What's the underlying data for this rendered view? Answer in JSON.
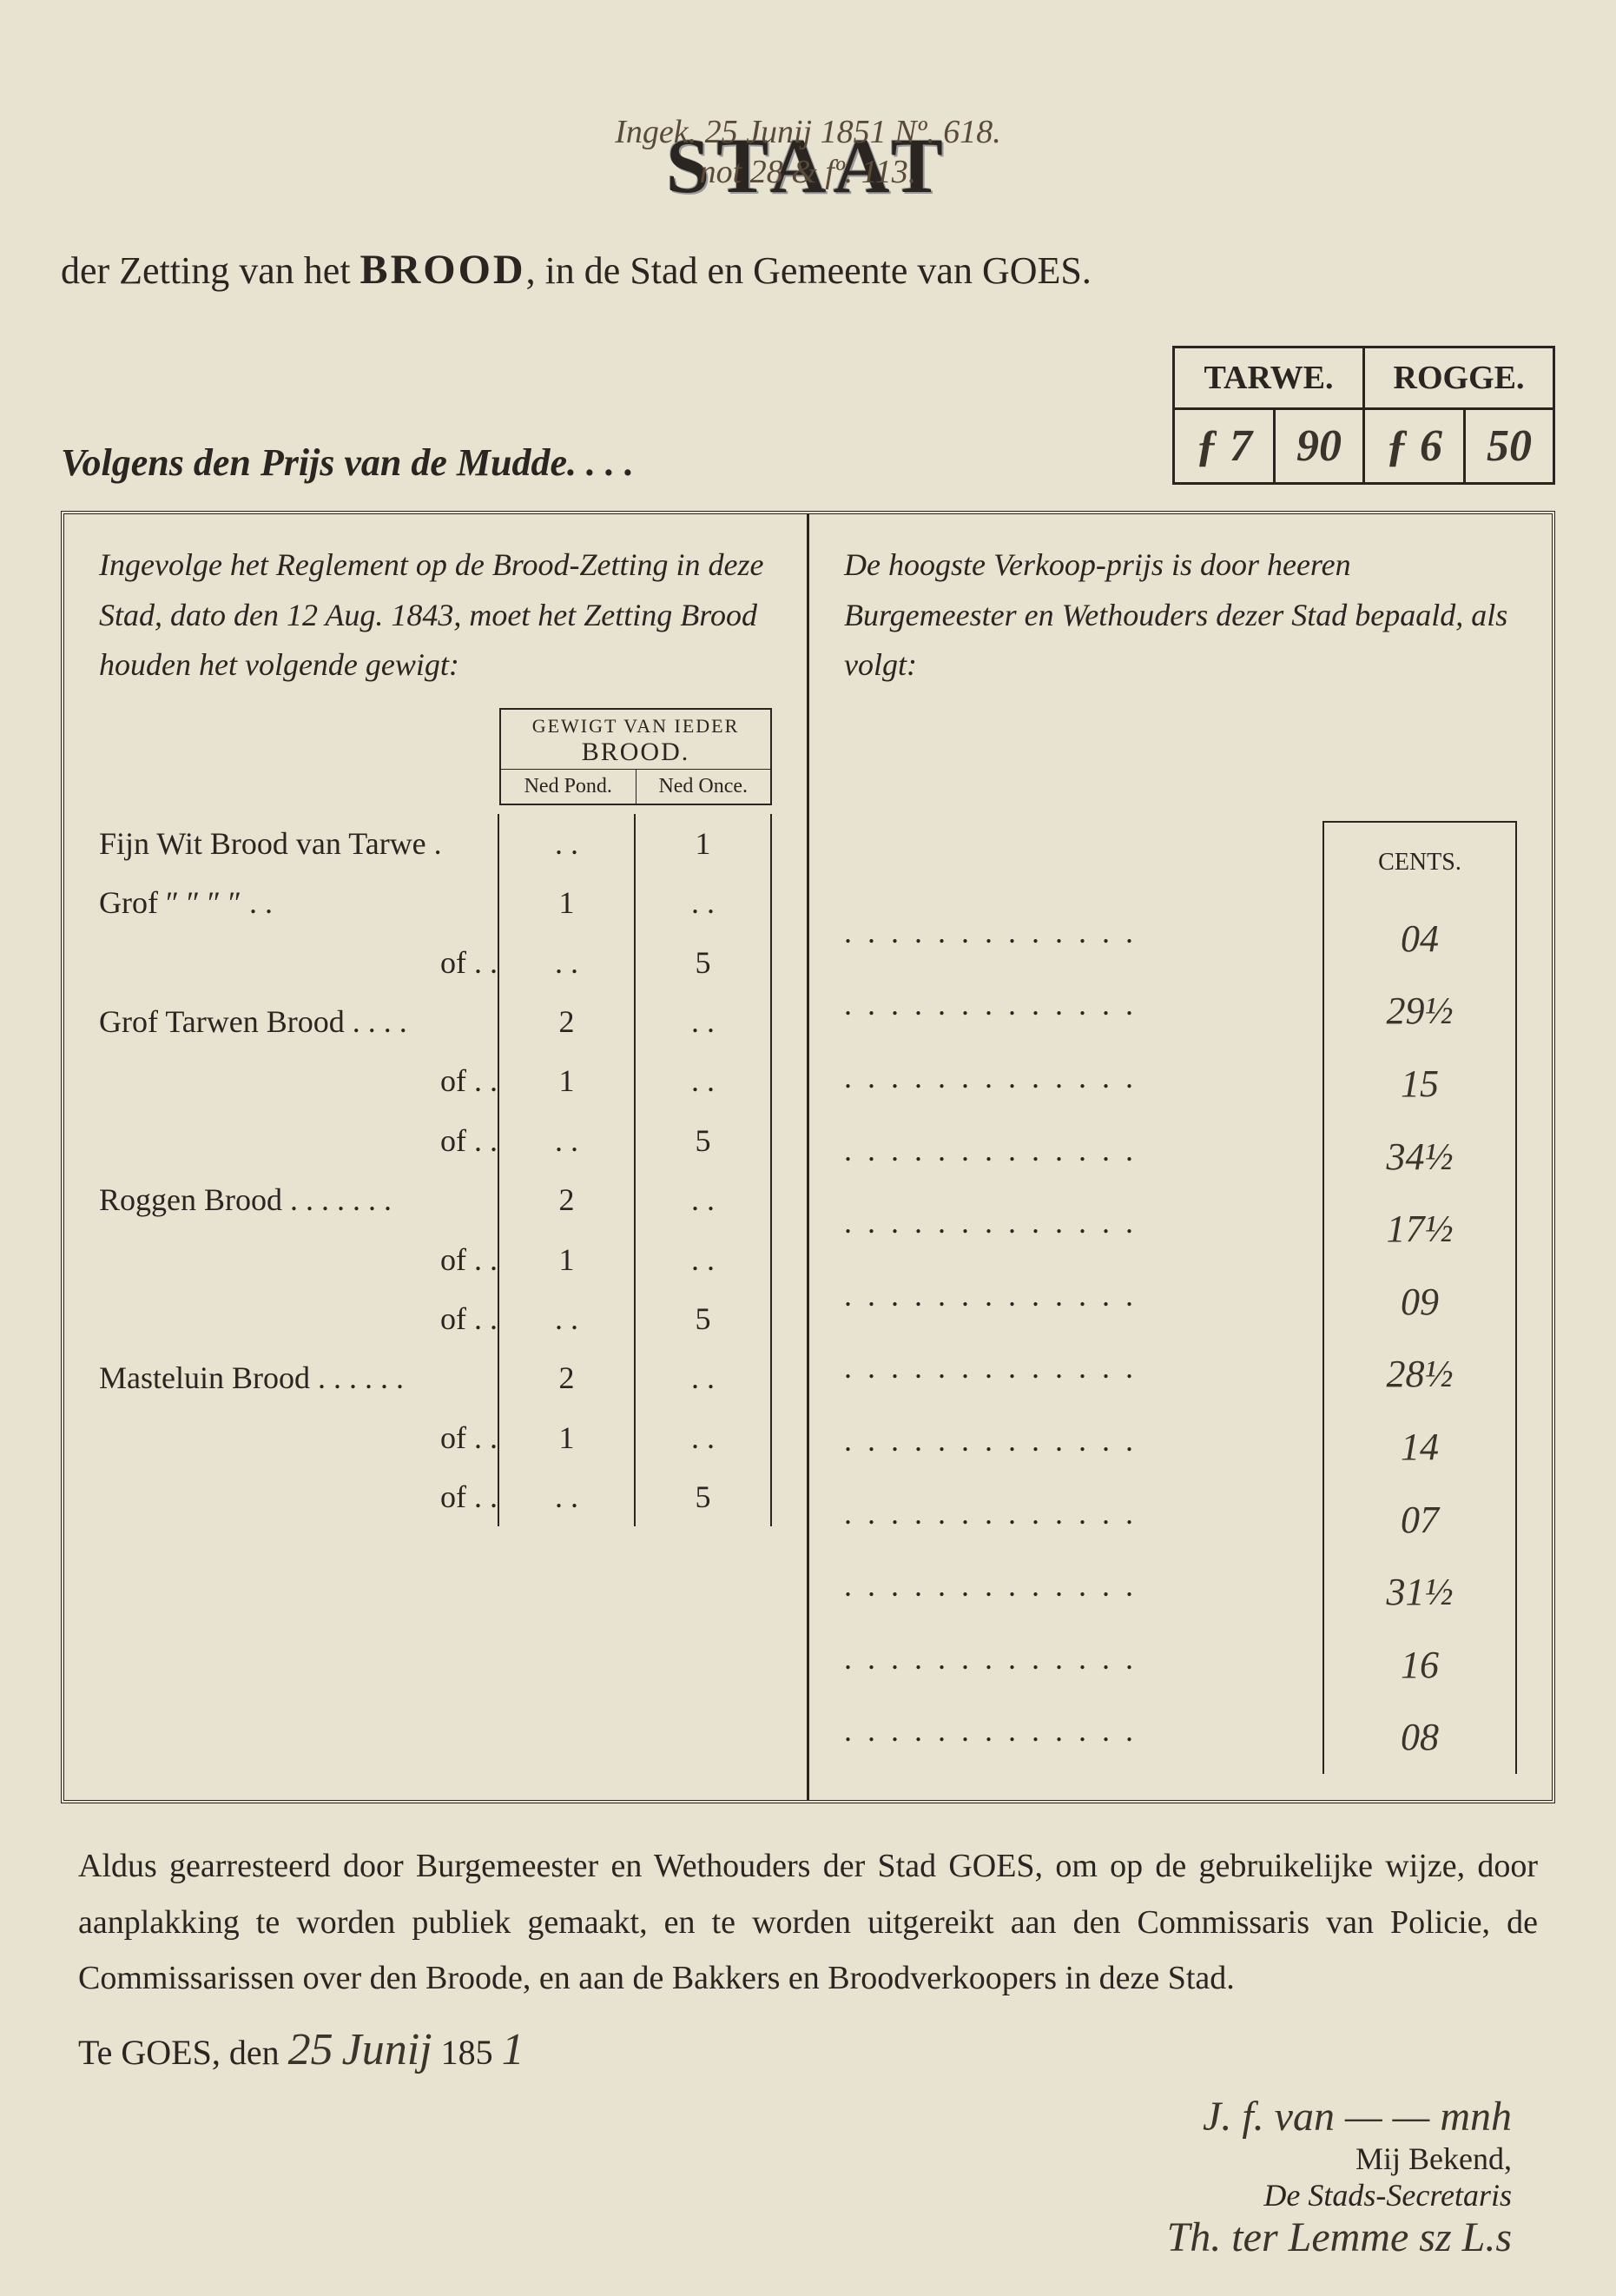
{
  "annotation": {
    "line1": "Ingek. 25 Junij 1851 Nº. 618.",
    "line2": "not 28 & fº. 113."
  },
  "title": {
    "main": "STAAT",
    "sub_pre": "der Zetting van het ",
    "sub_bold": "BROOD",
    "sub_post": ", in de Stad en Gemeente van GOES."
  },
  "price_header": {
    "label": "Volgens den Prijs van de Mudde. . . .",
    "col1": "TARWE.",
    "col2": "ROGGE.",
    "tarwe_f": "ƒ 7",
    "tarwe_c": "90",
    "rogge_f": "ƒ 6",
    "rogge_c": "50"
  },
  "left_intro": "Ingevolge het Reglement op de Brood-Zetting in deze Stad, dato den 12 Aug. 1843, moet het Zetting Brood houden het volgende gewigt:",
  "right_intro": "De hoogste Verkoop-prijs is door heeren Burgemeester en Wethouders dezer Stad bepaald, als volgt:",
  "weight_header": {
    "title_small": "GEWIGT VAN IEDER",
    "title_big": "BROOD.",
    "col1": "Ned Pond.",
    "col2": "Ned Once."
  },
  "cents_label": "CENTS.",
  "rows": [
    {
      "label": "Fijn Wit Brood van Tarwe .",
      "pond": ". .",
      "once": "1",
      "cents": "04"
    },
    {
      "label": "Grof   ″     ″      ″     ″  . .",
      "pond": "1",
      "once": ". .",
      "cents": "29½"
    },
    {
      "label": "of . .",
      "pond": ". .",
      "once": "5",
      "cents": "15"
    },
    {
      "label": "Grof Tarwen Brood . . . .",
      "pond": "2",
      "once": ". .",
      "cents": "34½"
    },
    {
      "label": "of . .",
      "pond": "1",
      "once": ". .",
      "cents": "17½"
    },
    {
      "label": "of . .",
      "pond": ". .",
      "once": "5",
      "cents": "09"
    },
    {
      "label": "Roggen Brood . . . . . . .",
      "pond": "2",
      "once": ". .",
      "cents": "28½"
    },
    {
      "label": "of . .",
      "pond": "1",
      "once": ". .",
      "cents": "14"
    },
    {
      "label": "of . .",
      "pond": ". .",
      "once": "5",
      "cents": "07"
    },
    {
      "label": "Masteluin Brood . . . . . .",
      "pond": "2",
      "once": ". .",
      "cents": "31½"
    },
    {
      "label": "of . .",
      "pond": "1",
      "once": ". .",
      "cents": "16"
    },
    {
      "label": "of . .",
      "pond": ". .",
      "once": "5",
      "cents": "08"
    }
  ],
  "closing": "Aldus gearresteerd door Burgemeester en Wethouders der Stad GOES, om op de gebruikelijke wijze, door aanplakking te worden publiek gemaakt, en te worden uitgereikt aan den Commissaris van Policie, de Commissarissen over den Broode, en aan de Bakkers en Broodverkoopers in deze Stad.",
  "date": {
    "pre": "Te GOES, den ",
    "day": "25",
    "month": "Junij",
    "year_pre": "185",
    "year_end": "1"
  },
  "signatures": {
    "sig1": "J. f. van — — mnh",
    "known": "Mij Bekend,",
    "role": "De Stads-Secretaris",
    "sig2": "Th. ter Lemme sz L.s"
  },
  "colors": {
    "paper": "#e8e3d0",
    "ink": "#2a2520",
    "hand_ink": "#3a342c"
  }
}
